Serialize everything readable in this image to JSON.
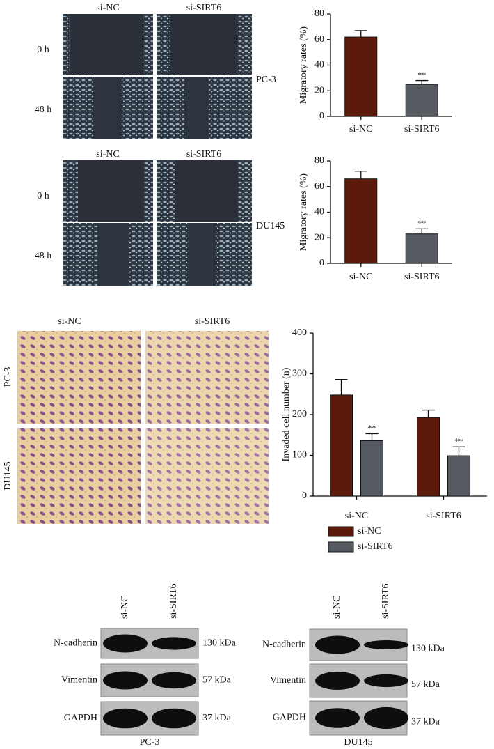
{
  "chart_data": [
    {
      "type": "bar",
      "ylabel": "Migratory rates (%)",
      "categories": [
        "si-NC",
        "si-SIRT6"
      ],
      "values": [
        62,
        25
      ],
      "errors": [
        5,
        3
      ],
      "colors": [
        "#5c1a0a",
        "#555a60"
      ],
      "significance": [
        null,
        "**"
      ],
      "ylim": [
        0,
        80
      ],
      "yticks": [
        0,
        20,
        40,
        60,
        80
      ]
    },
    {
      "type": "bar",
      "ylabel": "Migratory rates (%)",
      "categories": [
        "si-NC",
        "si-SIRT6"
      ],
      "values": [
        66,
        23
      ],
      "errors": [
        6,
        4
      ],
      "colors": [
        "#5c1a0a",
        "#555a60"
      ],
      "significance": [
        null,
        "**"
      ],
      "ylim": [
        0,
        80
      ],
      "yticks": [
        0,
        20,
        40,
        60,
        80
      ]
    },
    {
      "type": "bar",
      "ylabel": "Invaded cell number (n)",
      "categories": [
        "si-NC",
        "si-SIRT6"
      ],
      "series": [
        {
          "name": "si-NC",
          "color": "#5c1a0a",
          "values": [
            248,
            193
          ],
          "errors": [
            38,
            18
          ],
          "significance": [
            null,
            null
          ]
        },
        {
          "name": "si-SIRT6",
          "color": "#555a60",
          "values": [
            136,
            99
          ],
          "errors": [
            17,
            22
          ],
          "significance": [
            "**",
            "**"
          ]
        }
      ],
      "ylim": [
        0,
        400
      ],
      "yticks": [
        0,
        100,
        200,
        300,
        400
      ],
      "legend": "bottom"
    }
  ],
  "wound_healing": [
    {
      "cell": "PC-3",
      "columns": [
        "si-NC",
        "si-SIRT6"
      ],
      "rows": [
        "0 h",
        "48 h"
      ]
    },
    {
      "cell": "DU145",
      "columns": [
        "si-NC",
        "si-SIRT6"
      ],
      "rows": [
        "0 h",
        "48 h"
      ]
    }
  ],
  "transwell": {
    "columns": [
      "si-NC",
      "si-SIRT6"
    ],
    "rows": [
      "PC-3",
      "DU145"
    ]
  },
  "western_blot": [
    {
      "cell": "PC-3",
      "lanes": [
        "si-NC",
        "si-SIRT6"
      ],
      "proteins": [
        {
          "name": "N-cadherin",
          "size": "130 kDa"
        },
        {
          "name": "Vimentin",
          "size": "57 kDa"
        },
        {
          "name": "GAPDH",
          "size": "37 kDa"
        }
      ]
    },
    {
      "cell": "DU145",
      "lanes": [
        "si-NC",
        "si-SIRT6"
      ],
      "proteins": [
        {
          "name": "N-cadherin",
          "size": "130 kDa"
        },
        {
          "name": "Vimentin",
          "size": "57 kDa"
        },
        {
          "name": "GAPDH",
          "size": "37 kDa"
        }
      ]
    }
  ]
}
